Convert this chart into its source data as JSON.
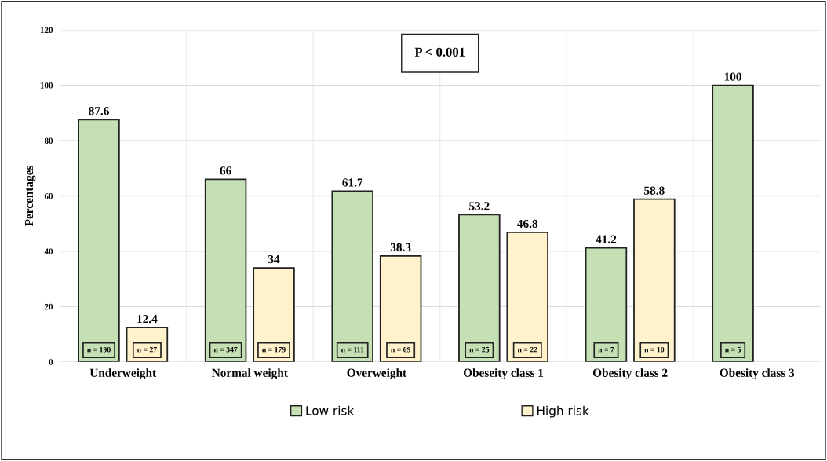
{
  "chart_data": {
    "type": "bar",
    "ylabel": "Percentages",
    "categories": [
      "Underweight",
      "Normal weight",
      "Overweight",
      "Obeseity class 1",
      "Obesity class 2",
      "Obesity class 3"
    ],
    "series": [
      {
        "name": "Low risk",
        "color": "#c5e0b4",
        "values": [
          87.6,
          66,
          61.7,
          53.2,
          41.2,
          100
        ],
        "value_labels": [
          "87.6",
          "66",
          "61.7",
          "53.2",
          "41.2",
          "100"
        ]
      },
      {
        "name": "High risk",
        "color": "#fff2cc",
        "values": [
          12.4,
          34,
          38.3,
          46.8,
          58.8,
          null
        ],
        "value_labels": [
          "12.4",
          "34",
          "38.3",
          "46.8",
          "58.8",
          null
        ]
      }
    ],
    "ylim": [
      0,
      120
    ],
    "yticks": [
      0,
      20,
      40,
      60,
      80,
      100,
      120
    ],
    "grid": true,
    "legend": "bottom",
    "annotations": [
      "P < 0.001",
      "n = 190",
      "n = 27",
      "n = 347",
      "n = 179",
      "n = 111",
      "n = 69",
      "n = 25",
      "n = 22",
      "n = 7",
      "n = 10",
      "n = 5"
    ]
  }
}
